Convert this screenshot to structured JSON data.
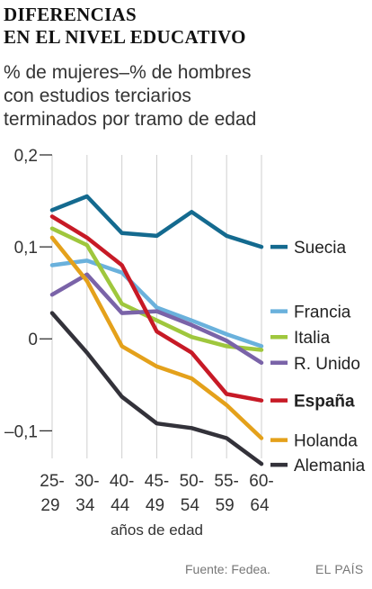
{
  "header": {
    "title_line1": "DIFERENCIAS",
    "title_line2": "EN EL NIVEL EDUCATIVO",
    "subtitle_line1": "% de mujeres–% de hombres",
    "subtitle_line2": "con estudios terciarios",
    "subtitle_line3": "terminados por tramo de edad"
  },
  "footer": {
    "source": "Fuente: Fedea.",
    "brand": "EL PAÍS"
  },
  "chart_data": {
    "type": "line",
    "xlabel": "años de edad",
    "ylabel": "",
    "x": [
      "25-29",
      "30-34",
      "40-44",
      "45-49",
      "50-54",
      "55-59",
      "60-64"
    ],
    "ylim": [
      -0.13,
      0.2
    ],
    "yticks": [
      0.2,
      0.1,
      0,
      -0.1
    ],
    "ytick_labels": [
      "0,2",
      "0,1",
      "0",
      "–0,1"
    ],
    "grid": "vertical",
    "legend": "right, labels at line ends",
    "series": [
      {
        "name": "Suecia",
        "color": "#146a8f",
        "bold": false,
        "values": [
          0.14,
          0.155,
          0.115,
          0.112,
          0.138,
          0.112,
          0.1
        ]
      },
      {
        "name": "Francia",
        "color": "#6ab1dc",
        "bold": false,
        "values": [
          0.08,
          0.085,
          0.072,
          0.034,
          0.02,
          0.005,
          -0.008
        ]
      },
      {
        "name": "Italia",
        "color": "#9fc73d",
        "bold": false,
        "values": [
          0.12,
          0.102,
          0.038,
          0.02,
          0.002,
          -0.008,
          -0.012
        ]
      },
      {
        "name": "R. Unido",
        "color": "#7a63a8",
        "bold": false,
        "values": [
          0.048,
          0.07,
          0.028,
          0.03,
          0.015,
          -0.002,
          -0.026
        ]
      },
      {
        "name": "España",
        "color": "#c71a26",
        "bold": true,
        "values": [
          0.133,
          0.11,
          0.08,
          0.008,
          -0.015,
          -0.06,
          -0.067
        ]
      },
      {
        "name": "Holanda",
        "color": "#e4a11b",
        "bold": false,
        "values": [
          0.11,
          0.063,
          -0.008,
          -0.03,
          -0.043,
          -0.072,
          -0.108
        ]
      },
      {
        "name": "Alemania",
        "color": "#33323a",
        "bold": false,
        "values": [
          0.028,
          -0.015,
          -0.063,
          -0.092,
          -0.097,
          -0.108,
          -0.136
        ]
      }
    ]
  }
}
